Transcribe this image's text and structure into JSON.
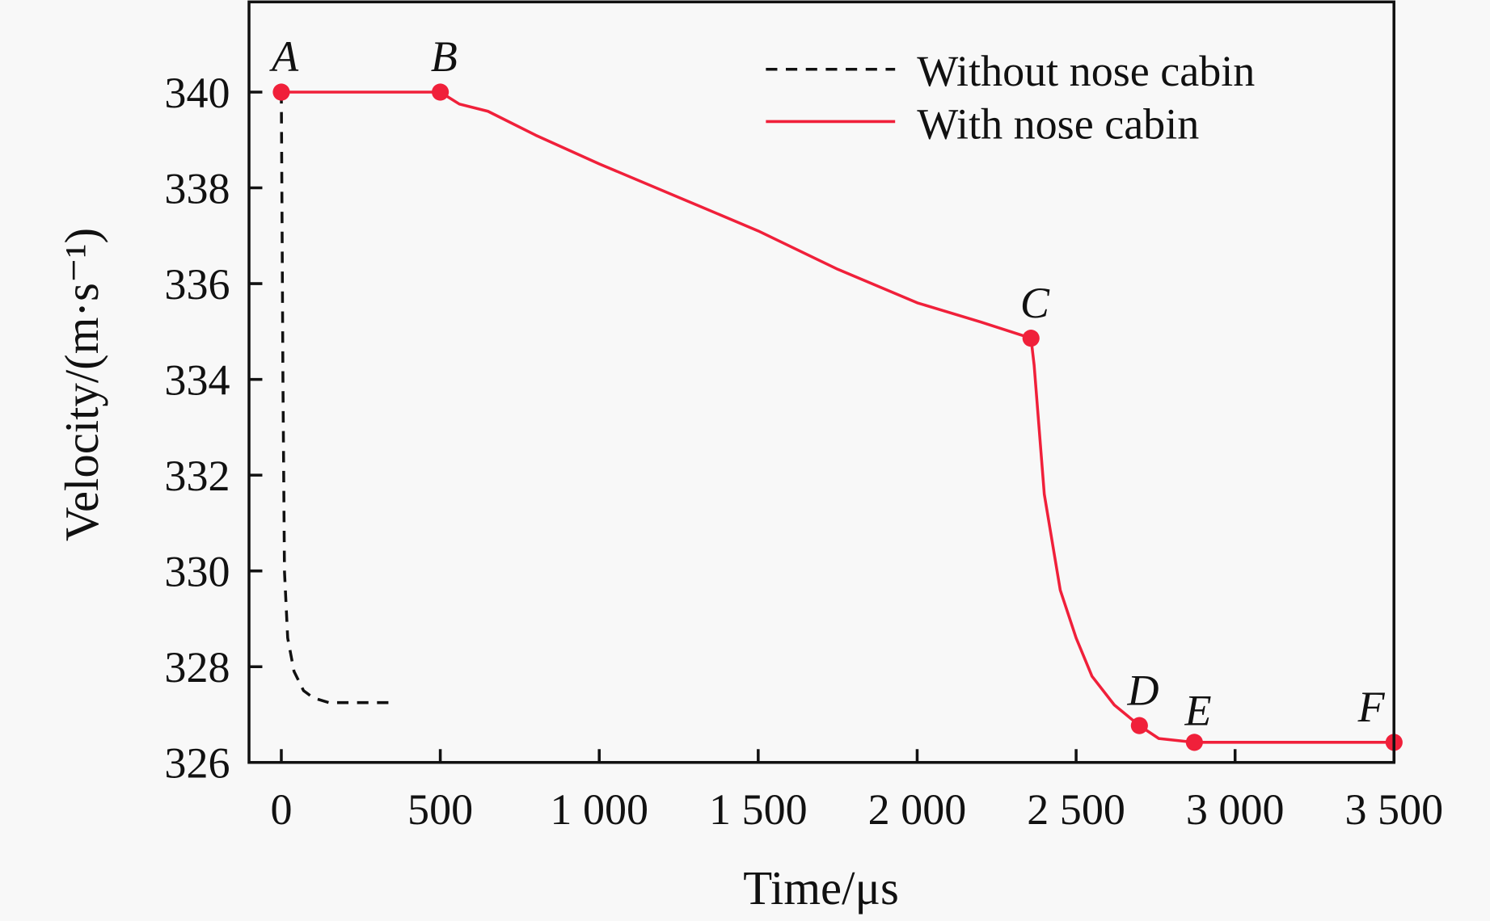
{
  "chart_data": {
    "type": "line",
    "xlabel": "Time/μs",
    "ylabel": "Velocity/(m·s⁻¹)",
    "xlim": [
      -100,
      3500
    ],
    "ylim": [
      326,
      342
    ],
    "xticks": [
      0,
      500,
      1000,
      1500,
      2000,
      2500,
      3000,
      3500
    ],
    "xtick_labels": [
      "0",
      "500",
      "1 000",
      "1 500",
      "2 000",
      "2 500",
      "3 000",
      "3 500"
    ],
    "yticks": [
      326,
      328,
      330,
      332,
      334,
      336,
      338,
      340
    ],
    "ytick_labels": [
      "326",
      "328",
      "330",
      "332",
      "334",
      "336",
      "338",
      "340"
    ],
    "grid": false,
    "legend_position": "top-right",
    "series": [
      {
        "name": "Without nose cabin",
        "color": "#111111",
        "style": "dashed",
        "x": [
          0,
          5,
          10,
          20,
          40,
          70,
          100,
          150,
          360
        ],
        "y": [
          340,
          334,
          330,
          328.6,
          327.9,
          327.5,
          327.35,
          327.25,
          327.25
        ]
      },
      {
        "name": "With nose cabin",
        "color": "#f0203a",
        "style": "solid",
        "x": [
          0,
          500,
          560,
          650,
          800,
          1000,
          1250,
          1500,
          1750,
          2000,
          2200,
          2358,
          2368,
          2400,
          2450,
          2500,
          2550,
          2620,
          2699,
          2760,
          2872,
          3150,
          3500
        ],
        "y": [
          340,
          340,
          339.75,
          339.6,
          339.1,
          338.5,
          337.8,
          337.1,
          336.3,
          335.6,
          335.2,
          334.86,
          334.3,
          331.6,
          329.6,
          328.6,
          327.8,
          327.2,
          326.77,
          326.5,
          326.42,
          326.42,
          326.42
        ]
      }
    ],
    "annotations": [
      {
        "label": "A",
        "x": 0,
        "y": 340
      },
      {
        "label": "B",
        "x": 500,
        "y": 340
      },
      {
        "label": "C",
        "x": 2358,
        "y": 334.86
      },
      {
        "label": "D",
        "x": 2699,
        "y": 326.77
      },
      {
        "label": "E",
        "x": 2872,
        "y": 326.42
      },
      {
        "label": "F",
        "x": 3500,
        "y": 326.42
      }
    ]
  }
}
